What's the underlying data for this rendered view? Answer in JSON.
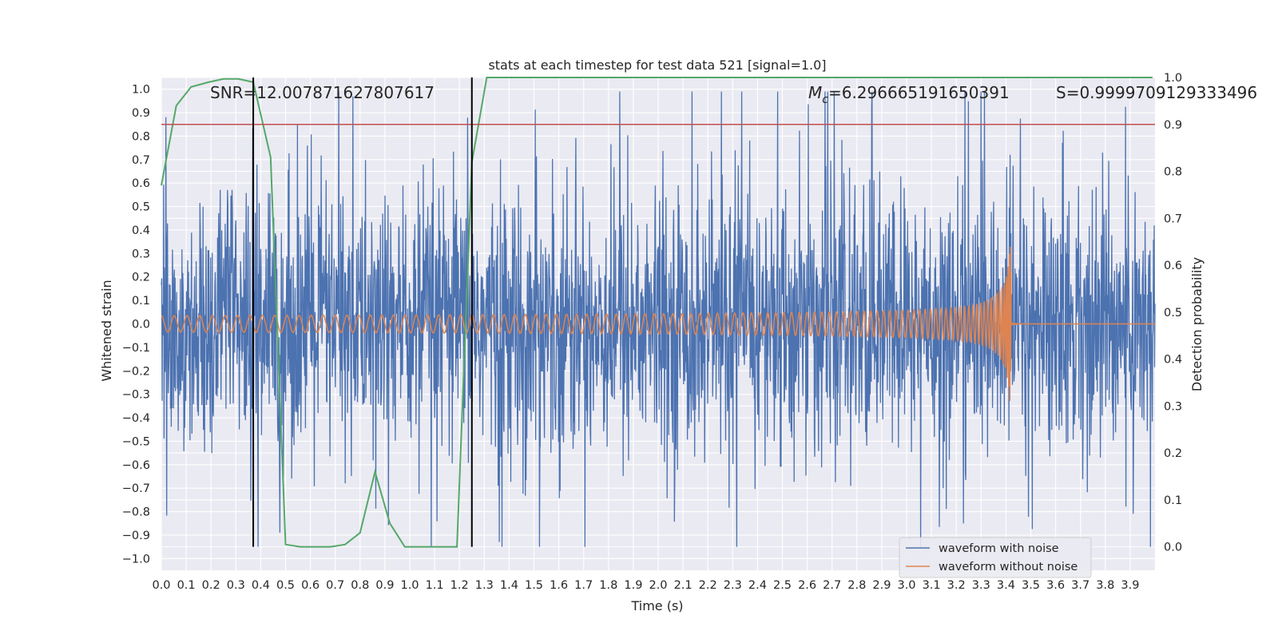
{
  "chart_data": {
    "type": "line",
    "title": "stats at each timestep for test data 521 [signal=1.0]",
    "xlabel": "Time (s)",
    "ylabel": "Whitened strain",
    "y2label": "Detection probability",
    "xlim": [
      0.0,
      4.0
    ],
    "ylim": [
      -1.05,
      1.05
    ],
    "y2lim": [
      -0.05,
      1.0
    ],
    "x_ticks": [
      "0.0",
      "0.1",
      "0.2",
      "0.3",
      "0.4",
      "0.5",
      "0.6",
      "0.7",
      "0.8",
      "0.9",
      "1.0",
      "1.1",
      "1.2",
      "1.3",
      "1.4",
      "1.5",
      "1.6",
      "1.7",
      "1.8",
      "1.9",
      "2.0",
      "2.1",
      "2.2",
      "2.3",
      "2.4",
      "2.5",
      "2.6",
      "2.7",
      "2.8",
      "2.9",
      "3.0",
      "3.1",
      "3.2",
      "3.3",
      "3.4",
      "3.5",
      "3.6",
      "3.7",
      "3.8",
      "3.9"
    ],
    "y_ticks": [
      "1.0",
      "0.9",
      "0.8",
      "0.7",
      "0.6",
      "0.5",
      "0.4",
      "0.3",
      "0.2",
      "0.1",
      "0.0",
      "−0.1",
      "−0.2",
      "−0.3",
      "−0.4",
      "−0.5",
      "−0.6",
      "−0.7",
      "−0.8",
      "−0.9",
      "−1.0"
    ],
    "y2_ticks": [
      "1.0",
      "0.9",
      "0.8",
      "0.7",
      "0.6",
      "0.5",
      "0.4",
      "0.3",
      "0.2",
      "0.1",
      "0.0"
    ],
    "annotations": {
      "snr": "SNR=12.007871627807617",
      "mc_symbol": "M",
      "mc_sub": "c",
      "mc_value": "=6.296665191650391",
      "s": "S=0.9999709129333496"
    },
    "legend_position": "lower-right",
    "grid": true,
    "series": [
      {
        "name": "waveform with noise",
        "color": "#4c72b0",
        "axis": "left",
        "description_values": {
          "amplitude_range": [
            -0.95,
            0.99
          ]
        }
      },
      {
        "name": "waveform without noise",
        "color": "#dd8452",
        "axis": "left",
        "chirp": {
          "start_amplitude": 0.035,
          "peak_amplitude": 0.33,
          "merger_time": 3.42
        }
      },
      {
        "name": "",
        "color": "#55a868",
        "axis": "right",
        "x": [
          0.0,
          0.06,
          0.12,
          0.19,
          0.25,
          0.31,
          0.37,
          0.44,
          0.5,
          0.56,
          0.62,
          0.68,
          0.74,
          0.8,
          0.86,
          0.92,
          0.98,
          1.04,
          1.1,
          1.16,
          1.19,
          1.25,
          1.31,
          1.4,
          2.0,
          3.0,
          3.99
        ],
        "values": [
          0.77,
          0.94,
          0.98,
          0.99,
          0.997,
          0.997,
          0.99,
          0.83,
          0.005,
          0.0,
          0.0,
          0.0,
          0.005,
          0.03,
          0.16,
          0.05,
          0.0,
          0.0,
          0.0,
          0.0,
          0.0,
          0.82,
          1.0,
          1.0,
          1.0,
          1.0,
          1.0
        ]
      }
    ],
    "hlines": [
      {
        "y2": 0.9,
        "color": "#c44e52"
      }
    ],
    "vlines": [
      {
        "x": 0.37,
        "color": "#000000"
      },
      {
        "x": 1.25,
        "color": "#000000"
      }
    ]
  }
}
